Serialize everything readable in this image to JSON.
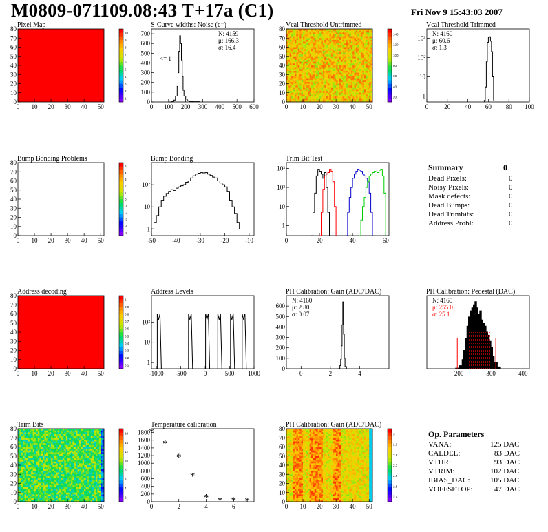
{
  "header": {
    "title": "M0809-071109.08:43 T+17a (C1)",
    "date": "Fri Nov  9 15:43:03 2007"
  },
  "colors": {
    "black": "#000000",
    "red_hist": "#ff0000",
    "blue_hist": "#0000cc",
    "green_hist": "#00cc00",
    "map_red": "#ff0000"
  },
  "panels": [
    {
      "id": "pixel-map",
      "title": "Pixel Map",
      "type": "heatmap",
      "xlim": [
        0,
        52
      ],
      "ylim": [
        0,
        80
      ],
      "xticks": [
        0,
        10,
        20,
        30,
        40,
        50
      ],
      "yticks": [
        0,
        10,
        20,
        30,
        40,
        50,
        60,
        70,
        80
      ],
      "fill": "uniform-red",
      "palette": {
        "ticks": [
          "10",
          "9",
          "8",
          "7",
          "6",
          "5",
          "4",
          "3",
          "2",
          "1"
        ]
      }
    },
    {
      "id": "s-curve",
      "title": "S-Curve widths: Noise (e⁻)",
      "type": "histogram",
      "xlim": [
        0,
        600
      ],
      "ylim": [
        0,
        750
      ],
      "xticks": [
        0,
        100,
        200,
        300,
        400,
        500,
        600
      ],
      "yticks": [
        0,
        100,
        200,
        300,
        400,
        500,
        600,
        700
      ],
      "stats": [
        "N: 4159",
        "μ: 166.3",
        "σ: 16.4"
      ],
      "annotation": "<= 1",
      "series": [
        {
          "color": "#000000",
          "x": [
            100,
            120,
            130,
            140,
            150,
            155,
            160,
            165,
            170,
            175,
            180,
            185,
            190,
            200,
            210,
            220,
            240,
            280
          ],
          "y": [
            0,
            5,
            20,
            60,
            160,
            300,
            520,
            680,
            600,
            430,
            260,
            120,
            60,
            30,
            12,
            6,
            3,
            0
          ]
        }
      ]
    },
    {
      "id": "vcal-untrimmed",
      "title": "Vcal Threshold Untrimmed",
      "type": "heatmap",
      "xlim": [
        0,
        52
      ],
      "ylim": [
        0,
        80
      ],
      "xticks": [
        0,
        10,
        20,
        30,
        40,
        50
      ],
      "yticks": [
        0,
        10,
        20,
        30,
        40,
        50,
        60,
        70,
        80
      ],
      "fill": "noise-orange",
      "palette": {
        "ticks": [
          "140",
          "120",
          "100",
          "80",
          "60",
          "40",
          "20"
        ]
      }
    },
    {
      "id": "vcal-trimmed",
      "title": "Vcal Threshold Trimmed",
      "type": "histogram",
      "xlim": [
        0,
        100
      ],
      "ylog": true,
      "ylim": [
        0.5,
        3000
      ],
      "xticks": [
        0,
        20,
        40,
        60,
        80,
        100
      ],
      "yticks": [
        1,
        10,
        100,
        1000
      ],
      "stats": [
        "N: 4160",
        "μ: 60.6",
        "σ:  1.3"
      ],
      "series": [
        {
          "color": "#000000",
          "x": [
            56,
            57,
            58,
            59,
            60,
            61,
            62,
            63,
            64,
            65
          ],
          "y": [
            0.6,
            3,
            60,
            600,
            1100,
            1200,
            700,
            200,
            10,
            0.6
          ]
        }
      ]
    },
    {
      "id": "bump-problems",
      "title": "Bump Bonding Problems",
      "type": "heatmap",
      "xlim": [
        0,
        52
      ],
      "ylim": [
        0,
        80
      ],
      "xticks": [
        0,
        10,
        20,
        30,
        40,
        50
      ],
      "yticks": [
        0,
        10,
        20,
        30,
        40,
        50,
        60,
        70,
        80
      ],
      "fill": "empty",
      "palette": {
        "ticks": [
          "5",
          "4",
          "3",
          "2",
          "1",
          "0",
          "-1",
          "-2",
          "-3",
          "-4",
          "-5"
        ]
      }
    },
    {
      "id": "bump-bonding",
      "title": "Bump Bonding",
      "type": "histogram",
      "xlim": [
        -50,
        -8
      ],
      "ylog": true,
      "ylim": [
        0.5,
        1000
      ],
      "xticks": [
        -50,
        -40,
        -30,
        -20,
        -10
      ],
      "yticks": [
        1,
        10,
        100
      ],
      "series": [
        {
          "color": "#000000",
          "x": [
            -50,
            -49,
            -48,
            -47,
            -46,
            -45,
            -44,
            -43,
            -42,
            -41,
            -40,
            -39,
            -38,
            -37,
            -36,
            -35,
            -34,
            -33,
            -32,
            -31,
            -30,
            -29,
            -28,
            -27,
            -26,
            -25,
            -24,
            -23,
            -22,
            -21,
            -20,
            -19,
            -18,
            -17,
            -16,
            -15,
            -14
          ],
          "y": [
            1,
            2,
            4,
            10,
            20,
            30,
            40,
            50,
            60,
            55,
            70,
            80,
            90,
            100,
            130,
            150,
            200,
            250,
            300,
            330,
            350,
            340,
            350,
            300,
            260,
            220,
            200,
            150,
            120,
            100,
            80,
            50,
            20,
            10,
            5,
            2,
            1
          ]
        }
      ]
    },
    {
      "id": "trim-bit-test",
      "title": "Trim Bit Test",
      "type": "histogram",
      "xlim": [
        0,
        62
      ],
      "ylog": true,
      "ylim": [
        0.3,
        2000
      ],
      "xticks": [
        0,
        20,
        40,
        60
      ],
      "yticks": [
        1,
        10,
        100,
        1000
      ],
      "series": [
        {
          "color": "#000000",
          "x": [
            15,
            16,
            17,
            18,
            19,
            20,
            21,
            22,
            23,
            24,
            25,
            26
          ],
          "y": [
            0.3,
            5,
            50,
            400,
            900,
            700,
            500,
            300,
            600,
            100,
            5,
            0.3
          ]
        },
        {
          "color": "#ff0000",
          "x": [
            20,
            21,
            22,
            23,
            24,
            25,
            26,
            27,
            28,
            29,
            30
          ],
          "y": [
            0.3,
            5,
            80,
            400,
            500,
            600,
            900,
            700,
            200,
            10,
            0.3
          ]
        },
        {
          "color": "#0000cc",
          "x": [
            36,
            37,
            38,
            39,
            40,
            41,
            42,
            43,
            44,
            45,
            46,
            47,
            48,
            49,
            50,
            51,
            52
          ],
          "y": [
            0.3,
            5,
            30,
            100,
            300,
            500,
            700,
            900,
            800,
            700,
            500,
            400,
            300,
            200,
            50,
            5,
            0.3
          ]
        },
        {
          "color": "#00cc00",
          "x": [
            44,
            45,
            46,
            47,
            48,
            49,
            50,
            51,
            52,
            53,
            54,
            55,
            56,
            57,
            58,
            59,
            60
          ],
          "y": [
            0.3,
            2,
            10,
            30,
            100,
            200,
            400,
            500,
            600,
            700,
            650,
            600,
            800,
            900,
            400,
            50,
            0.3
          ]
        }
      ]
    },
    {
      "id": "address-decoding",
      "title": "Address decoding",
      "type": "heatmap",
      "xlim": [
        0,
        52
      ],
      "ylim": [
        0,
        80
      ],
      "xticks": [
        0,
        10,
        20,
        30,
        40,
        50
      ],
      "yticks": [
        0,
        10,
        20,
        30,
        40,
        50,
        60,
        70,
        80
      ],
      "fill": "uniform-red",
      "palette": {
        "ticks": [
          "1",
          "0.9",
          "0.8",
          "0.7",
          "0.6",
          "0.5",
          "0.4",
          "0.3",
          "0.2",
          "0.1"
        ]
      }
    },
    {
      "id": "address-levels",
      "title": "Address Levels",
      "type": "histogram",
      "xlim": [
        -1100,
        1000
      ],
      "ylog": true,
      "ylim": [
        0.5,
        2000
      ],
      "xticks": [
        -1000,
        -500,
        0,
        500,
        1000
      ],
      "yticks": [
        1,
        10,
        100
      ],
      "series": [
        {
          "color": "#000000",
          "spikes": [
            [
              -940,
              260
            ],
            [
              -300,
              260
            ],
            [
              50,
              260
            ],
            [
              300,
              260
            ],
            [
              560,
              260
            ],
            [
              800,
              260
            ]
          ]
        }
      ]
    },
    {
      "id": "ph-gain",
      "title": "PH Calibration: Gain (ADC/DAC)",
      "type": "histogram",
      "xlim": [
        -1,
        6
      ],
      "ylim": [
        0,
        700
      ],
      "xticks": [
        0,
        2,
        4
      ],
      "yticks": [
        0,
        100,
        200,
        300,
        400,
        500,
        600
      ],
      "stats": [
        "N: 4160",
        "μ: 2.80",
        "σ: 0.07"
      ],
      "series": [
        {
          "color": "#000000",
          "x": [
            2.5,
            2.6,
            2.65,
            2.7,
            2.75,
            2.8,
            2.85,
            2.9,
            2.95,
            3.0,
            3.1
          ],
          "y": [
            0,
            5,
            30,
            90,
            220,
            420,
            640,
            330,
            100,
            20,
            0
          ]
        }
      ]
    },
    {
      "id": "ph-pedestal",
      "title": "PH Calibration: Pedestal (DAC)",
      "type": "histogram",
      "xlim": [
        100,
        420
      ],
      "ylim": [
        0,
        120
      ],
      "xticks": [
        200,
        300,
        400
      ],
      "yticks": [],
      "stats": [
        "N: 4160",
        "μ: 255.0",
        "σ: 25.1"
      ],
      "stat_colors": [
        "#000000",
        "#ff0000",
        "#ff0000"
      ],
      "series": [
        {
          "color": "#000000",
          "fill": "hatched",
          "x": [
            190,
            200,
            210,
            215,
            220,
            225,
            230,
            235,
            240,
            245,
            250,
            255,
            260,
            265,
            270,
            275,
            280,
            285,
            290,
            295,
            300,
            305,
            310,
            320,
            330
          ],
          "y": [
            1,
            5,
            15,
            30,
            50,
            70,
            85,
            95,
            100,
            105,
            110,
            100,
            90,
            95,
            80,
            75,
            70,
            60,
            55,
            45,
            35,
            20,
            10,
            3,
            1
          ]
        }
      ]
    },
    {
      "id": "trim-bits",
      "title": "Trim Bits",
      "type": "heatmap",
      "xlim": [
        0,
        52
      ],
      "ylim": [
        0,
        80
      ],
      "xticks": [
        0,
        10,
        20,
        30,
        40,
        50
      ],
      "yticks": [
        0,
        10,
        20,
        30,
        40,
        50,
        60,
        70,
        80
      ],
      "fill": "noise-green",
      "palette": {
        "ticks": [
          "16",
          "14",
          "12",
          "10",
          "8",
          "6",
          "4",
          "2"
        ]
      }
    },
    {
      "id": "temperature",
      "title": "Temperature calibration",
      "type": "scatter",
      "xlim": [
        0,
        7.5
      ],
      "ylim": [
        0,
        1900
      ],
      "xticks": [
        0,
        2,
        4,
        6
      ],
      "yticks": [
        0,
        200,
        400,
        600,
        800,
        1000,
        1200,
        1400,
        1600,
        1800
      ],
      "series": [
        {
          "color": "#000000",
          "x": [
            0,
            1,
            2,
            3,
            4,
            5,
            6,
            7
          ],
          "y": [
            1800,
            1500,
            1150,
            650,
            100,
            20,
            20,
            10
          ]
        }
      ]
    },
    {
      "id": "ph-gain-map",
      "title": "PH Calibration: Gain (ADC/DAC)",
      "type": "heatmap",
      "xlim": [
        0,
        52
      ],
      "ylim": [
        0,
        80
      ],
      "xticks": [
        0,
        10,
        20,
        30,
        40,
        50
      ],
      "yticks": [
        0,
        10,
        20,
        30,
        40,
        50,
        60,
        70,
        80
      ],
      "fill": "noise-gain",
      "palette": {
        "ticks": [
          "3",
          "2.9",
          "2.8",
          "2.7",
          "2.6",
          "2.5",
          "2.4"
        ]
      }
    }
  ],
  "summary": {
    "title": "Summary",
    "total": "0",
    "rows": [
      {
        "label": "Dead Pixels:",
        "value": "0"
      },
      {
        "label": "Noisy Pixels:",
        "value": "0"
      },
      {
        "label": "Mask defects:",
        "value": "0"
      },
      {
        "label": "Dead Bumps:",
        "value": "0"
      },
      {
        "label": "Dead Trimbits:",
        "value": "0"
      },
      {
        "label": "Address Probl:",
        "value": "0"
      }
    ]
  },
  "op_params": {
    "title": "Op. Parameters",
    "rows": [
      {
        "label": "VANA:",
        "value": "125 DAC"
      },
      {
        "label": "CALDEL:",
        "value": "83 DAC"
      },
      {
        "label": "VTHR:",
        "value": "93 DAC"
      },
      {
        "label": "VTRIM:",
        "value": "102 DAC"
      },
      {
        "label": "IBIAS_DAC:",
        "value": "105 DAC"
      },
      {
        "label": "VOFFSETOP:",
        "value": "47 DAC"
      }
    ]
  },
  "chart_data": {
    "type": "histogram",
    "title": "M0809-071109.08:43 T+17a (C1)",
    "panels_ref": "panels"
  }
}
